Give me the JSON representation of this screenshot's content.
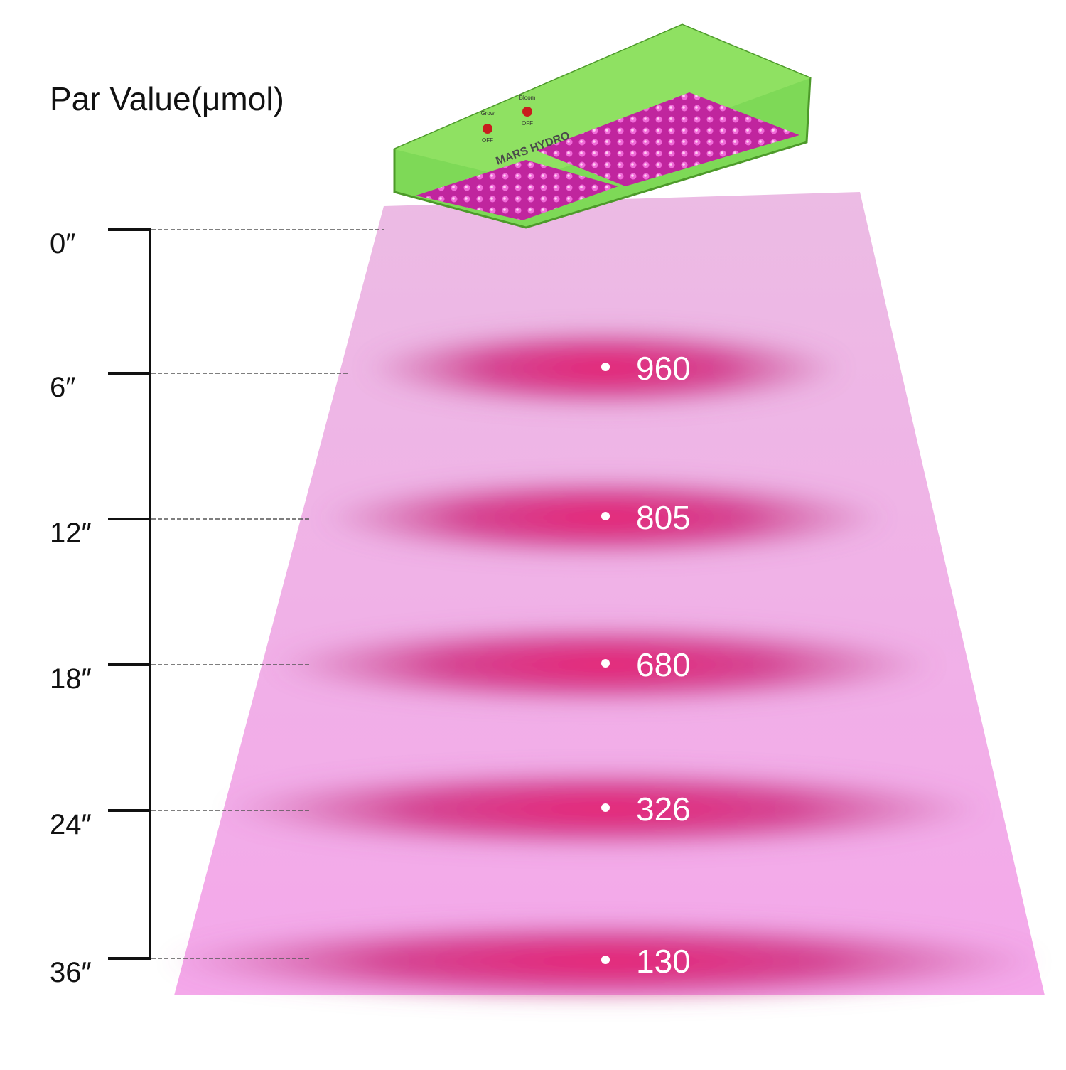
{
  "title": "Par Value(μmol)",
  "brand": "MARS HYDRO",
  "switches": [
    {
      "label": "Grow",
      "state": "OFF"
    },
    {
      "label": "Bloom",
      "state": "OFF"
    }
  ],
  "scale": {
    "labels": [
      "0″",
      "6″",
      "12″",
      "18″",
      "24″",
      "36″"
    ]
  },
  "readings": [
    960,
    805,
    680,
    326,
    130
  ]
}
